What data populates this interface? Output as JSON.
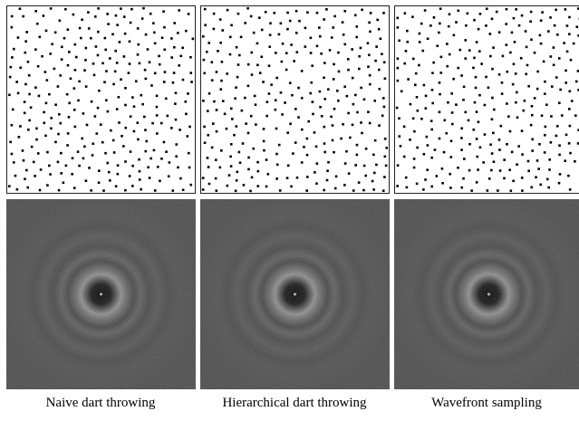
{
  "captions": [
    "Naive dart throwing",
    "Hierarchical dart throwing",
    "Wavefront sampling"
  ]
}
